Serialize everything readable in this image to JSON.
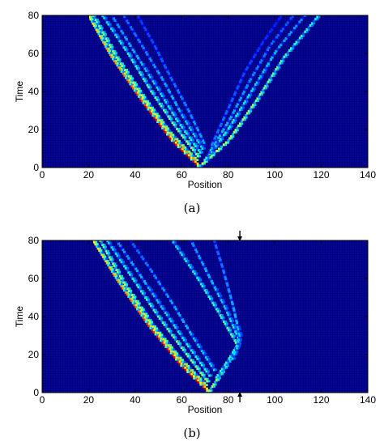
{
  "chart_data": [
    {
      "type": "heatmap",
      "caption": "(a)",
      "xlabel": "Position",
      "ylabel": "Time",
      "xlim": [
        0,
        140
      ],
      "ylim": [
        0,
        80
      ],
      "xticks": [
        0,
        20,
        40,
        60,
        80,
        100,
        120,
        140
      ],
      "yticks": [
        0,
        20,
        40,
        60,
        80
      ],
      "colormap": [
        "#00008f",
        "#0000ff",
        "#00ffff",
        "#ffff00",
        "#ff0000",
        "#800000"
      ],
      "background_color": "#000088",
      "ridges": [
        {
          "x": [
            67,
            56,
            43,
            30,
            20
          ],
          "t": [
            1,
            14,
            35,
            58,
            80
          ],
          "intensity": 0.8
        },
        {
          "x": [
            66,
            55,
            44,
            32,
            22
          ],
          "t": [
            4,
            18,
            36,
            58,
            80
          ],
          "intensity": 0.6
        },
        {
          "x": [
            67,
            57,
            47,
            37,
            26
          ],
          "t": [
            6,
            22,
            40,
            60,
            80
          ],
          "intensity": 0.45
        },
        {
          "x": [
            68,
            58,
            49,
            39,
            30
          ],
          "t": [
            8,
            25,
            43,
            62,
            80
          ],
          "intensity": 0.35
        },
        {
          "x": [
            69,
            60,
            52,
            43,
            35
          ],
          "t": [
            10,
            28,
            46,
            64,
            80
          ],
          "intensity": 0.3
        },
        {
          "x": [
            70,
            63,
            55,
            48,
            41
          ],
          "t": [
            12,
            30,
            48,
            65,
            80
          ],
          "intensity": 0.25
        },
        {
          "x": [
            68,
            80,
            92,
            104,
            119
          ],
          "t": [
            1,
            14,
            35,
            58,
            80
          ],
          "intensity": 0.5
        },
        {
          "x": [
            70,
            80,
            90,
            101,
            113
          ],
          "t": [
            4,
            20,
            40,
            62,
            80
          ],
          "intensity": 0.35
        },
        {
          "x": [
            72,
            81,
            89,
            98,
            108
          ],
          "t": [
            8,
            26,
            45,
            64,
            80
          ],
          "intensity": 0.28
        },
        {
          "x": [
            73,
            80,
            87,
            95,
            103
          ],
          "t": [
            12,
            31,
            50,
            66,
            80
          ],
          "intensity": 0.22
        }
      ]
    },
    {
      "type": "heatmap",
      "caption": "(b)",
      "xlabel": "Position",
      "ylabel": "Time",
      "xlim": [
        0,
        140
      ],
      "ylim": [
        0,
        80
      ],
      "xticks": [
        0,
        20,
        40,
        60,
        80,
        100,
        120,
        140
      ],
      "yticks": [
        0,
        20,
        40,
        60,
        80
      ],
      "colormap": [
        "#00008f",
        "#0000ff",
        "#00ffff",
        "#ffff00",
        "#ff0000",
        "#800000"
      ],
      "background_color": "#000088",
      "barrier_x": 85,
      "ridges": [
        {
          "x": [
            71,
            60,
            46,
            33,
            22
          ],
          "t": [
            1,
            14,
            35,
            58,
            80
          ],
          "intensity": 0.8
        },
        {
          "x": [
            70,
            59,
            47,
            35,
            25
          ],
          "t": [
            4,
            18,
            36,
            58,
            80
          ],
          "intensity": 0.6
        },
        {
          "x": [
            71,
            61,
            50,
            39,
            28
          ],
          "t": [
            6,
            22,
            40,
            60,
            80
          ],
          "intensity": 0.45
        },
        {
          "x": [
            72,
            62,
            52,
            42,
            32
          ],
          "t": [
            9,
            26,
            44,
            62,
            80
          ],
          "intensity": 0.35
        },
        {
          "x": [
            74,
            65,
            56,
            47,
            38
          ],
          "t": [
            12,
            29,
            47,
            64,
            80
          ],
          "intensity": 0.3
        },
        {
          "x": [
            72,
            78,
            84,
            76,
            66,
            56
          ],
          "t": [
            1,
            12,
            25,
            42,
            62,
            80
          ],
          "intensity": 0.45
        },
        {
          "x": [
            75,
            80,
            85,
            79,
            71,
            64
          ],
          "t": [
            8,
            17,
            27,
            44,
            63,
            80
          ],
          "intensity": 0.35
        },
        {
          "x": [
            82,
            84,
            85,
            82,
            78,
            74
          ],
          "t": [
            18,
            24,
            30,
            46,
            64,
            80
          ],
          "intensity": 0.3
        }
      ]
    }
  ]
}
